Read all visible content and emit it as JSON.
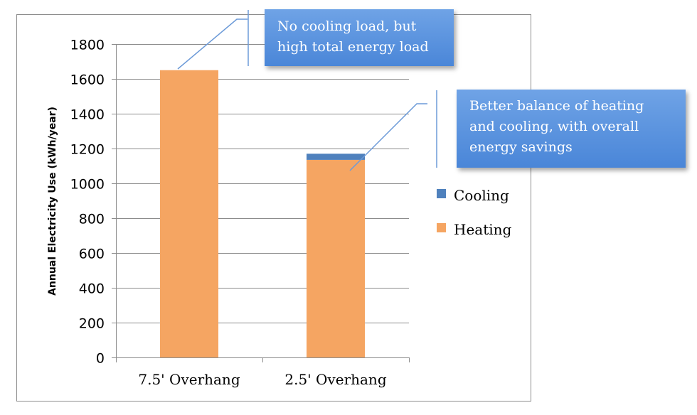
{
  "chart_data": {
    "type": "bar",
    "stacked": true,
    "categories": [
      "7.5' Overhang",
      "2.5' Overhang"
    ],
    "series": [
      {
        "name": "Heating",
        "values": [
          1650,
          1135
        ],
        "color": "#f5a562"
      },
      {
        "name": "Cooling",
        "values": [
          0,
          35
        ],
        "color": "#4f81bd"
      }
    ],
    "ylabel": "Annual Electricity Use (kWh/year)",
    "xlabel": "",
    "ylim": [
      0,
      1800
    ],
    "yticks": [
      "0",
      "200",
      "400",
      "600",
      "800",
      "1000",
      "1200",
      "1400",
      "1600",
      "1800"
    ],
    "grid": true,
    "legend_position": "right",
    "legend": [
      "Cooling",
      "Heating"
    ]
  },
  "annotations": [
    {
      "lines": [
        "No cooling load, but",
        "high total energy load"
      ]
    },
    {
      "lines": [
        "Better balance of heating",
        "and cooling, with overall",
        "energy savings"
      ]
    }
  ]
}
